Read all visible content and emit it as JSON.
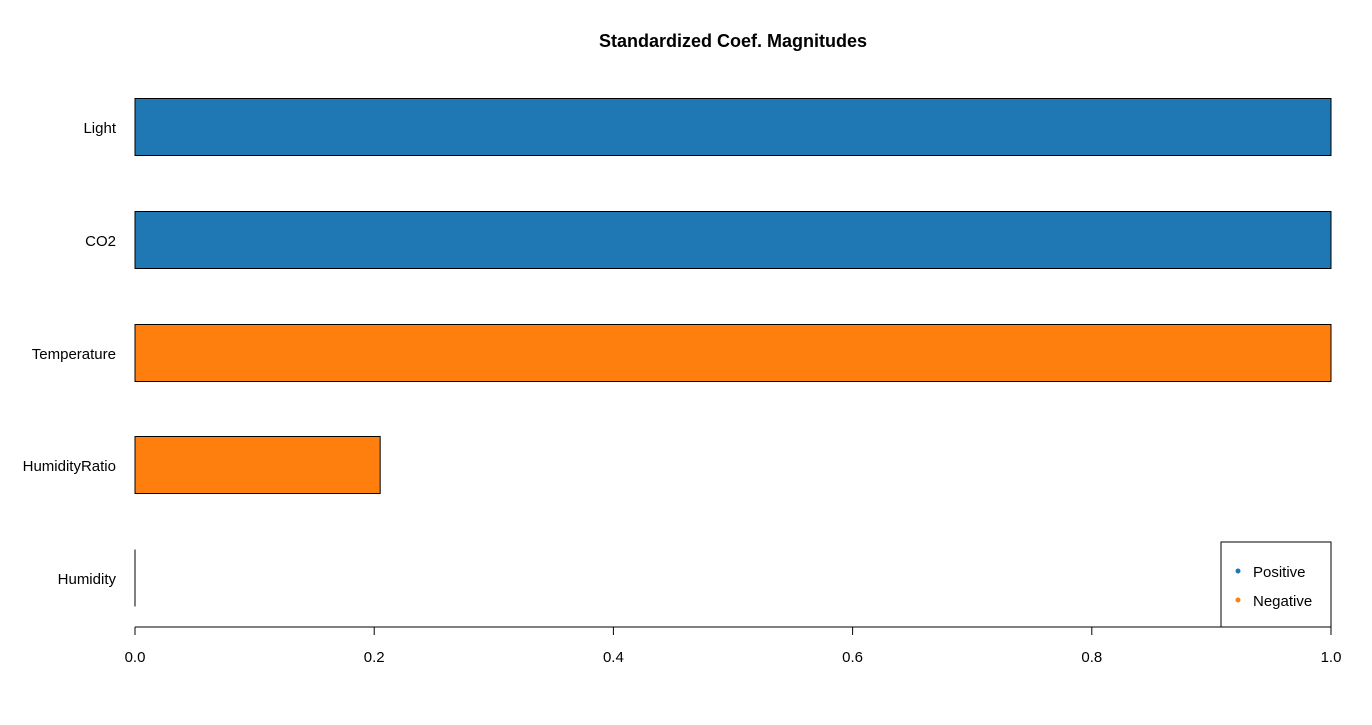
{
  "chart_data": {
    "type": "bar",
    "orientation": "horizontal",
    "title": "Standardized Coef. Magnitudes",
    "xlabel": "",
    "ylabel": "",
    "categories": [
      "Light",
      "CO2",
      "Temperature",
      "HumidityRatio",
      "Humidity"
    ],
    "values": [
      1.0,
      1.0,
      1.0,
      0.205,
      0.0
    ],
    "signs": [
      "Positive",
      "Positive",
      "Negative",
      "Negative",
      "Positive"
    ],
    "xlim": [
      0,
      1.0
    ],
    "xticks": [
      "0.0",
      "0.2",
      "0.4",
      "0.6",
      "0.8",
      "1.0"
    ],
    "grid": false,
    "legend": {
      "placement": "bottom-right",
      "entries": [
        {
          "label": "Positive",
          "color": "#1f77b4"
        },
        {
          "label": "Negative",
          "color": "#ff7f0e"
        }
      ]
    },
    "colors": {
      "Positive": "#1f77b4",
      "Negative": "#ff7f0e"
    }
  }
}
